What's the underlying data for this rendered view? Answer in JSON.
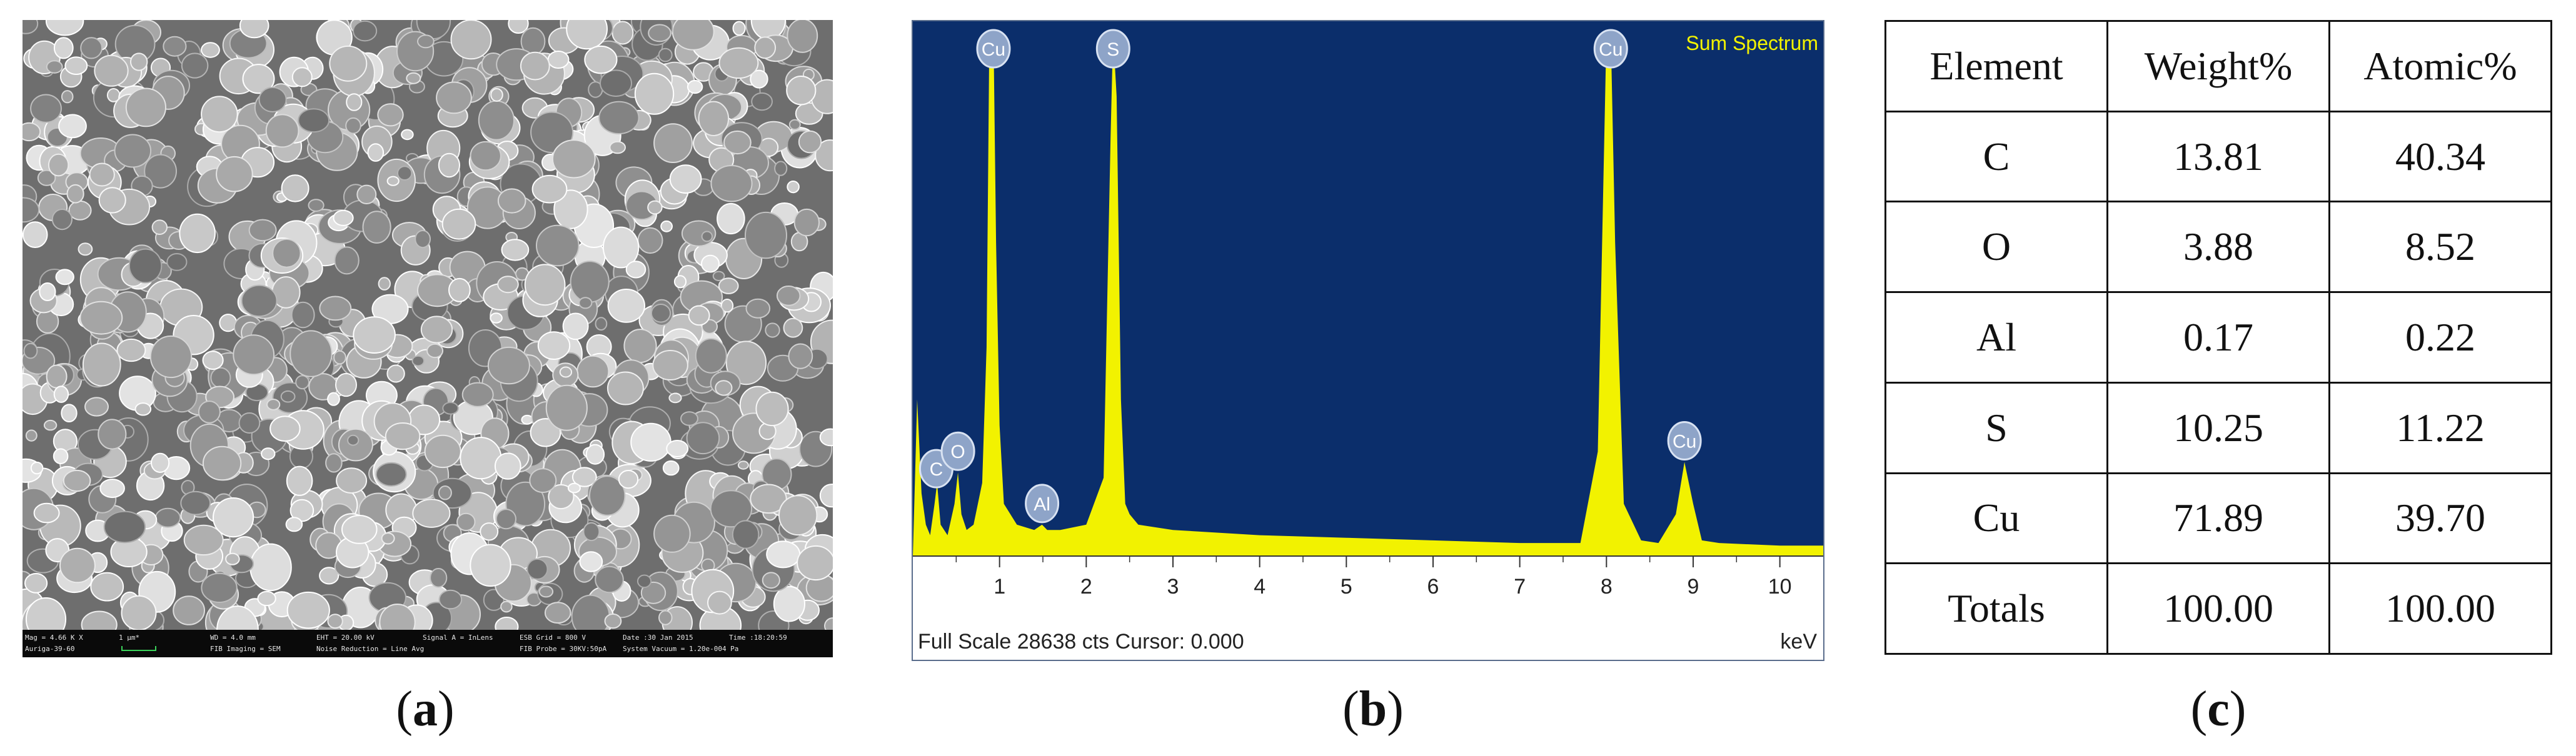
{
  "panel_labels": {
    "a": "a",
    "b": "b",
    "c": "c"
  },
  "sem_info": {
    "line1": [
      "Mag = 4.66 K X",
      "1 µm*",
      "WD = 4.0 mm",
      "EHT = 20.00 kV",
      "Signal A = InLens",
      "ESB Grid = 800 V",
      "Date :30 Jan 2015",
      "Time :18:20:59"
    ],
    "line2": [
      "Auriga-39-60",
      "FIB Imaging = SEM",
      "Noise Reduction = Line Avg",
      "FIB Probe = 30KV:50pA",
      "System Vacuum = 1.20e-004 Pa"
    ]
  },
  "eds": {
    "title": "Sum Spectrum",
    "footer": "Full Scale 28638 cts Cursor: 0.000",
    "unit": "keV",
    "colors": {
      "background": "#0b2e6b",
      "spectrum": "#f2f200",
      "axis": "#ffffff"
    }
  },
  "chart_data": {
    "type": "area",
    "xlabel": "keV",
    "xlim": [
      0,
      10.5
    ],
    "ylim": [
      0,
      100
    ],
    "x_ticks": [
      "1",
      "2",
      "3",
      "4",
      "5",
      "6",
      "7",
      "8",
      "9",
      "10"
    ],
    "series": [
      {
        "name": "Sum Spectrum",
        "x": [
          0.0,
          0.05,
          0.1,
          0.15,
          0.2,
          0.25,
          0.28,
          0.32,
          0.4,
          0.48,
          0.52,
          0.56,
          0.62,
          0.7,
          0.8,
          0.85,
          0.88,
          0.9,
          0.93,
          0.96,
          1.0,
          1.05,
          1.2,
          1.4,
          1.49,
          1.55,
          1.7,
          2.0,
          2.2,
          2.28,
          2.31,
          2.35,
          2.4,
          2.45,
          2.5,
          2.6,
          3.0,
          4.0,
          5.0,
          6.0,
          7.0,
          7.7,
          7.9,
          8.0,
          8.05,
          8.1,
          8.2,
          8.4,
          8.6,
          8.8,
          8.9,
          9.0,
          9.1,
          9.3,
          10.0,
          10.5
        ],
        "y": [
          0,
          30,
          12,
          6,
          4,
          10,
          14,
          6,
          4,
          10,
          16,
          8,
          5,
          6,
          14,
          40,
          95,
          100,
          100,
          60,
          25,
          10,
          6,
          5,
          6,
          5,
          5,
          6,
          15,
          80,
          100,
          88,
          30,
          10,
          8,
          6,
          5,
          4,
          3.5,
          3,
          2.5,
          2.5,
          20,
          100,
          100,
          60,
          10,
          3,
          2.5,
          8,
          18,
          10,
          3,
          2.5,
          2,
          2
        ]
      }
    ],
    "peak_labels": [
      {
        "label": "C",
        "x": 0.27
      },
      {
        "label": "O",
        "x": 0.52
      },
      {
        "label": "Cu",
        "x": 0.93
      },
      {
        "label": "Al",
        "x": 1.49
      },
      {
        "label": "S",
        "x": 2.31
      },
      {
        "label": "Cu",
        "x": 8.05
      },
      {
        "label": "Cu",
        "x": 8.9
      }
    ]
  },
  "table": {
    "headers": [
      "Element",
      "Weight%",
      "Atomic%"
    ],
    "rows": [
      [
        "C",
        "13.81",
        "40.34"
      ],
      [
        "O",
        "3.88",
        "8.52"
      ],
      [
        "Al",
        "0.17",
        "0.22"
      ],
      [
        "S",
        "10.25",
        "11.22"
      ],
      [
        "Cu",
        "71.89",
        "39.70"
      ],
      [
        "Totals",
        "100.00",
        "100.00"
      ]
    ]
  }
}
